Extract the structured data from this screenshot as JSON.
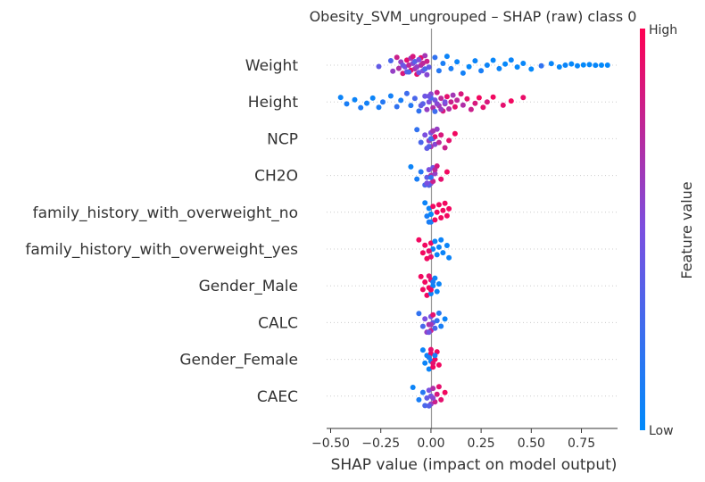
{
  "chart_data": {
    "type": "scatter",
    "title": "Obesity_SVM_ungrouped – SHAP (raw) class 0",
    "xlabel": "SHAP value (impact on model output)",
    "xlim": [
      -0.52,
      0.93
    ],
    "xticks": [
      -0.5,
      -0.25,
      0.0,
      0.25,
      0.5,
      0.75
    ],
    "xtick_labels": [
      "−0.50",
      "−0.25",
      "0.00",
      "0.25",
      "0.50",
      "0.75"
    ],
    "features": [
      "Weight",
      "Height",
      "NCP",
      "CH2O",
      "family_history_with_overweight_no",
      "family_history_with_overweight_yes",
      "Gender_Male",
      "CALC",
      "Gender_Female",
      "CAEC"
    ],
    "colorbar": {
      "label": "Feature value",
      "high": "High",
      "low": "Low"
    },
    "colors": {
      "low": "#008afb",
      "mid": "#7b4fe0",
      "high": "#ff0052",
      "axis": "#333333",
      "zero_line": "#999999",
      "row_line": "#cccccc"
    },
    "series": [
      {
        "feature": "Weight",
        "points": [
          [
            -0.17,
            0.8
          ],
          [
            -0.16,
            0.7
          ],
          [
            -0.15,
            0.6
          ],
          [
            -0.14,
            0.85
          ],
          [
            -0.13,
            0.5
          ],
          [
            -0.12,
            0.9
          ],
          [
            -0.12,
            0.4
          ],
          [
            -0.11,
            0.75
          ],
          [
            -0.1,
            0.65
          ],
          [
            -0.1,
            0.95
          ],
          [
            -0.09,
            0.55
          ],
          [
            -0.09,
            0.85
          ],
          [
            -0.08,
            0.7
          ],
          [
            -0.08,
            0.35
          ],
          [
            -0.07,
            0.9
          ],
          [
            -0.07,
            0.6
          ],
          [
            -0.06,
            0.8
          ],
          [
            -0.06,
            0.45
          ],
          [
            -0.05,
            0.7
          ],
          [
            -0.05,
            0.9
          ],
          [
            -0.04,
            0.5
          ],
          [
            -0.04,
            0.75
          ],
          [
            -0.03,
            0.65
          ],
          [
            -0.03,
            0.3
          ],
          [
            -0.02,
            0.8
          ],
          [
            -0.02,
            0.55
          ],
          [
            -0.01,
            0.4
          ],
          [
            -0.06,
            0.5
          ],
          [
            -0.11,
            0.3
          ],
          [
            -0.14,
            0.45
          ],
          [
            0.02,
            0.2
          ],
          [
            0.04,
            0.15
          ],
          [
            0.06,
            0.1
          ],
          [
            0.08,
            0.05
          ],
          [
            0.1,
            0.1
          ],
          [
            0.13,
            0.05
          ],
          [
            0.16,
            0.08
          ],
          [
            0.19,
            0.02
          ],
          [
            0.22,
            0.05
          ],
          [
            0.25,
            0.1
          ],
          [
            0.28,
            0.05
          ],
          [
            0.31,
            0.03
          ],
          [
            0.34,
            0.05
          ],
          [
            0.37,
            0.02
          ],
          [
            0.4,
            0.04
          ],
          [
            0.43,
            0.02
          ],
          [
            0.46,
            0.03
          ],
          [
            0.5,
            0.02
          ],
          [
            0.55,
            0.2
          ],
          [
            0.6,
            0.03
          ],
          [
            0.64,
            0.02
          ],
          [
            0.67,
            0.04
          ],
          [
            0.7,
            0.02
          ],
          [
            0.73,
            0.03
          ],
          [
            0.76,
            0.01
          ],
          [
            0.79,
            0.02
          ],
          [
            0.82,
            0.03
          ],
          [
            0.85,
            0.01
          ],
          [
            0.88,
            0.02
          ],
          [
            -0.26,
            0.4
          ],
          [
            -0.2,
            0.3
          ],
          [
            -0.19,
            0.6
          ]
        ]
      },
      {
        "feature": "Height",
        "points": [
          [
            -0.45,
            0.05
          ],
          [
            -0.42,
            0.1
          ],
          [
            -0.38,
            0.05
          ],
          [
            -0.35,
            0.12
          ],
          [
            -0.32,
            0.08
          ],
          [
            -0.29,
            0.05
          ],
          [
            -0.26,
            0.1
          ],
          [
            -0.24,
            0.15
          ],
          [
            -0.2,
            0.08
          ],
          [
            -0.17,
            0.2
          ],
          [
            -0.15,
            0.1
          ],
          [
            -0.12,
            0.25
          ],
          [
            -0.1,
            0.15
          ],
          [
            -0.08,
            0.3
          ],
          [
            -0.06,
            0.2
          ],
          [
            -0.04,
            0.35
          ],
          [
            -0.03,
            0.45
          ],
          [
            -0.02,
            0.6
          ],
          [
            -0.01,
            0.5
          ],
          [
            0.0,
            0.55
          ],
          [
            0.01,
            0.7
          ],
          [
            0.02,
            0.45
          ],
          [
            0.03,
            0.8
          ],
          [
            0.04,
            0.65
          ],
          [
            0.05,
            0.75
          ],
          [
            0.06,
            0.85
          ],
          [
            0.07,
            0.6
          ],
          [
            0.08,
            0.9
          ],
          [
            0.09,
            0.7
          ],
          [
            0.1,
            0.8
          ],
          [
            0.11,
            0.65
          ],
          [
            0.12,
            0.9
          ],
          [
            0.13,
            0.75
          ],
          [
            0.15,
            0.85
          ],
          [
            0.16,
            0.7
          ],
          [
            0.18,
            0.9
          ],
          [
            0.2,
            0.8
          ],
          [
            0.22,
            0.85
          ],
          [
            0.24,
            0.95
          ],
          [
            0.26,
            0.9
          ],
          [
            0.28,
            0.85
          ],
          [
            0.31,
            0.95
          ],
          [
            0.36,
            0.9
          ],
          [
            0.4,
            0.95
          ],
          [
            0.46,
            0.92
          ],
          [
            -0.05,
            0.4
          ],
          [
            0.0,
            0.3
          ],
          [
            0.02,
            0.25
          ],
          [
            0.03,
            0.55
          ],
          [
            -0.01,
            0.45
          ],
          [
            0.05,
            0.6
          ],
          [
            0.07,
            0.5
          ]
        ]
      },
      {
        "feature": "NCP",
        "points": [
          [
            -0.07,
            0.2
          ],
          [
            -0.05,
            0.3
          ],
          [
            -0.03,
            0.5
          ],
          [
            -0.02,
            0.4
          ],
          [
            -0.01,
            0.6
          ],
          [
            0.0,
            0.5
          ],
          [
            0.0,
            0.7
          ],
          [
            0.01,
            0.45
          ],
          [
            0.01,
            0.8
          ],
          [
            0.02,
            0.55
          ],
          [
            0.02,
            0.9
          ],
          [
            0.03,
            0.6
          ],
          [
            0.04,
            0.75
          ],
          [
            0.05,
            0.85
          ],
          [
            0.07,
            0.8
          ],
          [
            0.09,
            0.9
          ],
          [
            0.12,
            0.95
          ],
          [
            -0.01,
            0.35
          ],
          [
            0.0,
            0.25
          ],
          [
            0.01,
            0.65
          ]
        ]
      },
      {
        "feature": "CH2O",
        "points": [
          [
            -0.1,
            0.05
          ],
          [
            -0.07,
            0.1
          ],
          [
            -0.05,
            0.15
          ],
          [
            -0.03,
            0.3
          ],
          [
            -0.02,
            0.4
          ],
          [
            -0.01,
            0.5
          ],
          [
            0.0,
            0.55
          ],
          [
            0.0,
            0.7
          ],
          [
            0.01,
            0.45
          ],
          [
            0.01,
            0.8
          ],
          [
            0.02,
            0.6
          ],
          [
            0.03,
            0.85
          ],
          [
            0.05,
            0.9
          ],
          [
            0.08,
            0.95
          ],
          [
            -0.01,
            0.35
          ],
          [
            0.0,
            0.2
          ],
          [
            0.02,
            0.75
          ],
          [
            -0.02,
            0.5
          ]
        ]
      },
      {
        "feature": "family_history_with_overweight_no",
        "points": [
          [
            -0.03,
            0.05
          ],
          [
            -0.02,
            0.1
          ],
          [
            -0.01,
            0.05
          ],
          [
            0.0,
            0.1
          ],
          [
            0.0,
            0.05
          ],
          [
            0.01,
            0.95
          ],
          [
            0.02,
            0.95
          ],
          [
            0.03,
            0.95
          ],
          [
            0.04,
            0.95
          ],
          [
            0.05,
            0.95
          ],
          [
            0.06,
            0.95
          ],
          [
            0.07,
            0.95
          ],
          [
            0.08,
            0.95
          ],
          [
            0.09,
            0.95
          ],
          [
            -0.01,
            0.1
          ],
          [
            0.0,
            0.02
          ]
        ]
      },
      {
        "feature": "family_history_with_overweight_yes",
        "points": [
          [
            -0.06,
            0.95
          ],
          [
            -0.04,
            0.95
          ],
          [
            -0.03,
            0.95
          ],
          [
            -0.02,
            0.95
          ],
          [
            -0.01,
            0.95
          ],
          [
            0.0,
            0.95
          ],
          [
            0.0,
            0.9
          ],
          [
            0.01,
            0.05
          ],
          [
            0.02,
            0.05
          ],
          [
            0.03,
            0.05
          ],
          [
            0.04,
            0.05
          ],
          [
            0.05,
            0.05
          ],
          [
            0.06,
            0.05
          ],
          [
            0.08,
            0.05
          ],
          [
            0.09,
            0.05
          ],
          [
            -0.01,
            0.9
          ]
        ]
      },
      {
        "feature": "Gender_Male",
        "points": [
          [
            -0.05,
            0.95
          ],
          [
            -0.04,
            0.95
          ],
          [
            -0.03,
            0.95
          ],
          [
            -0.02,
            0.95
          ],
          [
            -0.01,
            0.95
          ],
          [
            0.0,
            0.9
          ],
          [
            0.0,
            0.05
          ],
          [
            0.01,
            0.05
          ],
          [
            0.02,
            0.05
          ],
          [
            0.03,
            0.05
          ],
          [
            0.04,
            0.05
          ],
          [
            -0.01,
            0.9
          ],
          [
            0.0,
            0.95
          ],
          [
            0.01,
            0.1
          ]
        ]
      },
      {
        "feature": "CALC",
        "points": [
          [
            -0.06,
            0.2
          ],
          [
            -0.04,
            0.3
          ],
          [
            -0.03,
            0.5
          ],
          [
            -0.02,
            0.6
          ],
          [
            -0.01,
            0.7
          ],
          [
            0.0,
            0.5
          ],
          [
            0.0,
            0.8
          ],
          [
            0.01,
            0.4
          ],
          [
            0.01,
            0.9
          ],
          [
            0.02,
            0.3
          ],
          [
            0.03,
            0.2
          ],
          [
            0.04,
            0.15
          ],
          [
            0.05,
            0.1
          ],
          [
            0.07,
            0.05
          ],
          [
            -0.01,
            0.45
          ],
          [
            0.0,
            0.65
          ]
        ]
      },
      {
        "feature": "Gender_Female",
        "points": [
          [
            -0.04,
            0.05
          ],
          [
            -0.03,
            0.05
          ],
          [
            -0.02,
            0.05
          ],
          [
            -0.01,
            0.05
          ],
          [
            0.0,
            0.05
          ],
          [
            0.0,
            0.95
          ],
          [
            0.01,
            0.95
          ],
          [
            0.02,
            0.95
          ],
          [
            0.03,
            0.95
          ],
          [
            0.04,
            0.95
          ],
          [
            -0.01,
            0.1
          ],
          [
            0.0,
            0.9
          ],
          [
            0.01,
            0.9
          ],
          [
            0.02,
            0.1
          ]
        ]
      },
      {
        "feature": "CAEC",
        "points": [
          [
            -0.09,
            0.05
          ],
          [
            -0.06,
            0.1
          ],
          [
            -0.04,
            0.15
          ],
          [
            -0.03,
            0.3
          ],
          [
            -0.02,
            0.4
          ],
          [
            -0.01,
            0.5
          ],
          [
            0.0,
            0.6
          ],
          [
            0.0,
            0.45
          ],
          [
            0.01,
            0.7
          ],
          [
            0.02,
            0.8
          ],
          [
            0.03,
            0.85
          ],
          [
            0.04,
            0.9
          ],
          [
            0.05,
            0.9
          ],
          [
            0.07,
            0.95
          ],
          [
            -0.01,
            0.35
          ],
          [
            0.01,
            0.55
          ]
        ]
      }
    ]
  }
}
